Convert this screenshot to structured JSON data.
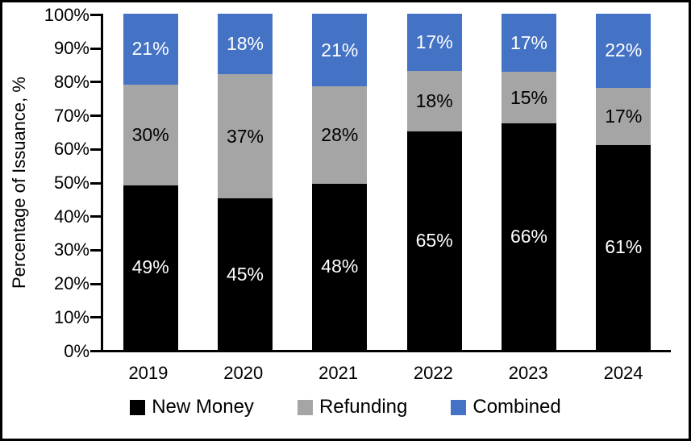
{
  "chart_data": {
    "type": "bar",
    "stacked": true,
    "title": "",
    "xlabel": "",
    "ylabel": "Percentage of Issuance, %",
    "ylim": [
      0,
      100
    ],
    "grid": false,
    "legend_position": "bottom",
    "categories": [
      "2019",
      "2020",
      "2021",
      "2022",
      "2023",
      "2024"
    ],
    "series": [
      {
        "name": "New Money",
        "color": "#000000",
        "label_color": "#ffffff",
        "values": [
          49,
          45,
          48,
          65,
          66,
          61
        ],
        "labels": [
          "49%",
          "45%",
          "48%",
          "65%",
          "66%",
          "61%"
        ]
      },
      {
        "name": "Refunding",
        "color": "#A5A5A5",
        "label_color": "#000000",
        "values": [
          30,
          37,
          28,
          18,
          15,
          17
        ],
        "labels": [
          "30%",
          "37%",
          "28%",
          "18%",
          "15%",
          "17%"
        ]
      },
      {
        "name": "Combined",
        "color": "#4472C4",
        "label_color": "#ffffff",
        "values": [
          21,
          18,
          21,
          17,
          17,
          22
        ],
        "labels": [
          "21%",
          "18%",
          "21%",
          "17%",
          "17%",
          "22%"
        ]
      }
    ],
    "y_ticks": [
      "0%",
      "10%",
      "20%",
      "30%",
      "40%",
      "50%",
      "60%",
      "70%",
      "80%",
      "90%",
      "100%"
    ]
  }
}
